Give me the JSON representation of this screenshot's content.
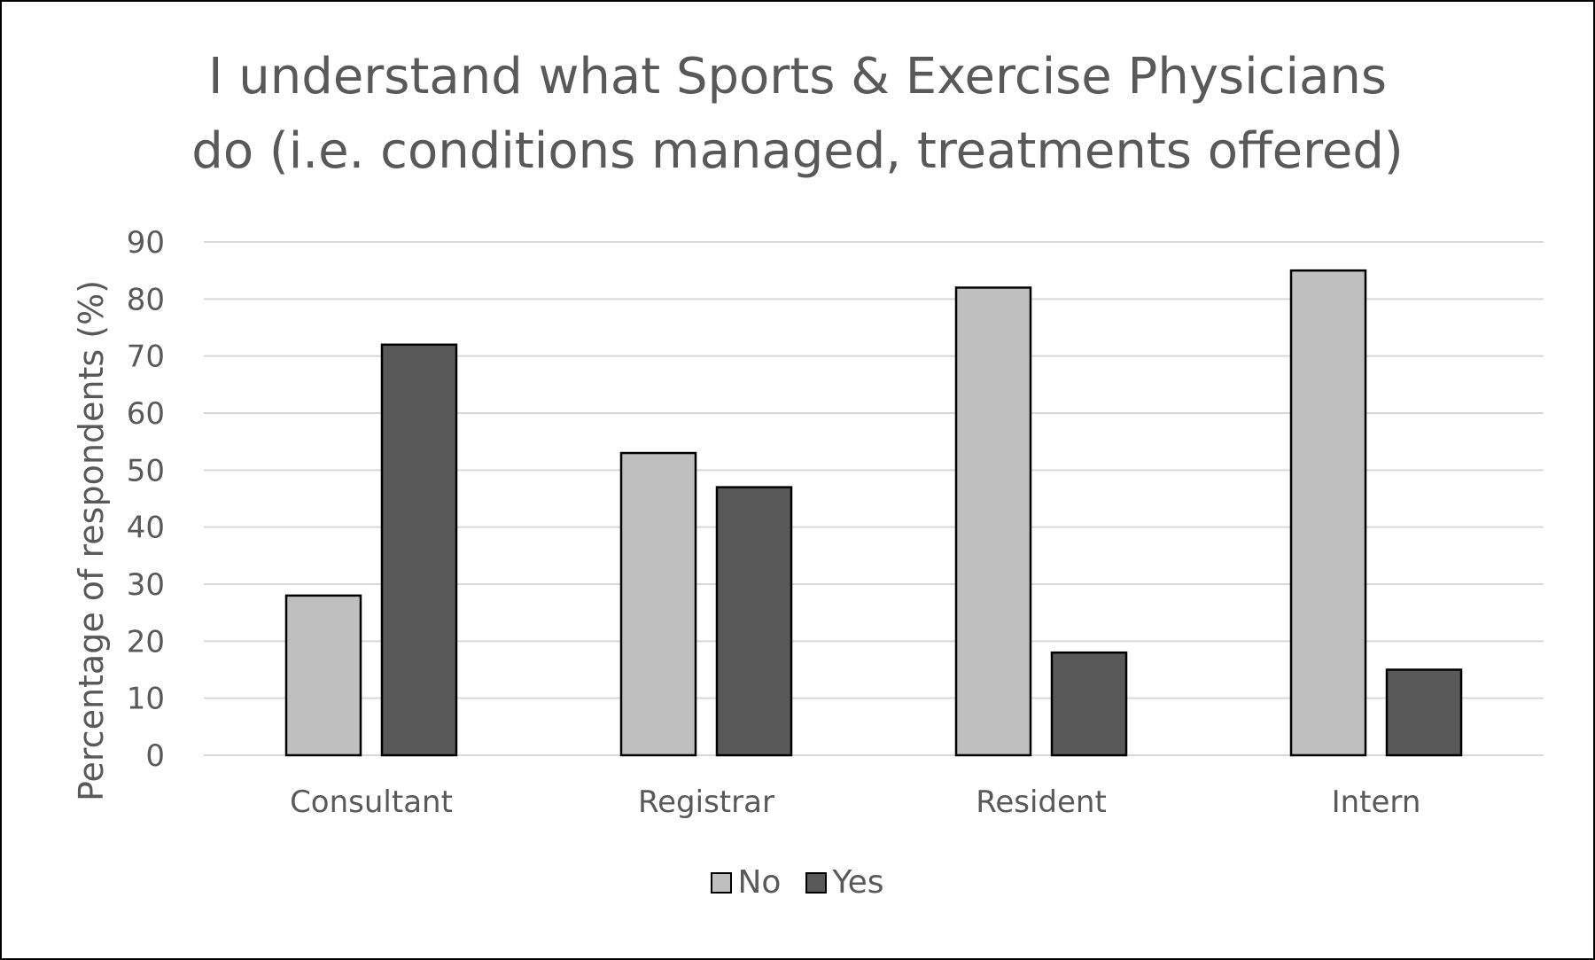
{
  "chart_data": {
    "type": "bar",
    "title_lines": [
      "I understand what Sports & Exercise Physicians",
      "do (i.e. conditions managed, treatments offered)"
    ],
    "xlabel": "",
    "ylabel": "Percentage of respondents (%)",
    "ylim": [
      0,
      90
    ],
    "yticks": [
      0,
      10,
      20,
      30,
      40,
      50,
      60,
      70,
      80,
      90
    ],
    "categories": [
      "Consultant",
      "Registrar",
      "Resident",
      "Intern"
    ],
    "series": [
      {
        "name": "No",
        "values": [
          28,
          53,
          82,
          85
        ],
        "color": "#bfbfbf"
      },
      {
        "name": "Yes",
        "values": [
          72,
          47,
          18,
          15
        ],
        "color": "#595959"
      }
    ],
    "grid": true,
    "gridline_color": "#d9d9d9",
    "bar_border_color": "#000000",
    "legend_position": "bottom"
  }
}
